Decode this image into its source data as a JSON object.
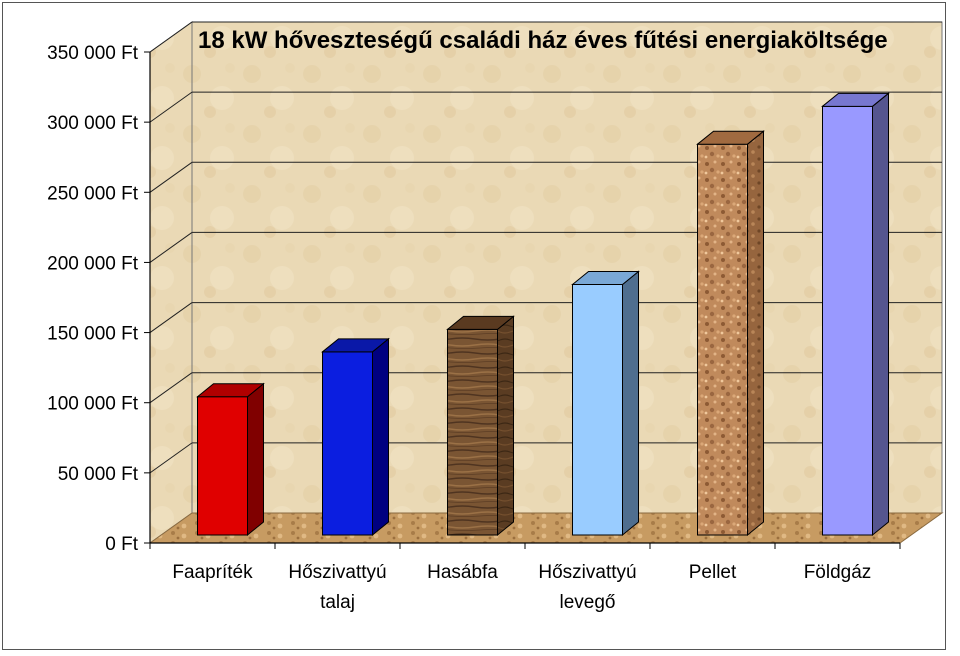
{
  "chart_data": {
    "type": "bar",
    "title": "18 kW hőveszteségű családi ház éves fűtési energiaköltsége",
    "categories": [
      "Faapríték",
      "Hőszivattyú talaj",
      "Hasábfa",
      "Hőszivattyú levegő",
      "Pellet",
      "Földgáz"
    ],
    "category_lines": [
      [
        "Faapríték"
      ],
      [
        "Hőszivattyú",
        "talaj"
      ],
      [
        "Hasábfa"
      ],
      [
        "Hőszivattyú",
        "levegő"
      ],
      [
        "Pellet"
      ],
      [
        "Földgáz"
      ]
    ],
    "values": [
      100000,
      132000,
      148000,
      180000,
      280000,
      307000
    ],
    "bar_colors": [
      "#e00000",
      "#0b1ee0",
      "#6b4a2c",
      "#99ccff",
      "#b07a50",
      "#9999ff"
    ],
    "y_ticks": [
      0,
      50000,
      100000,
      150000,
      200000,
      250000,
      300000,
      350000
    ],
    "y_tick_labels": [
      "0 Ft",
      "50 000 Ft",
      "100 000 Ft",
      "150 000 Ft",
      "200 000 Ft",
      "250 000 Ft",
      "300 000 Ft",
      "350 000 Ft"
    ],
    "ylim": [
      0,
      350000
    ],
    "grid": true,
    "xlabel": "",
    "ylabel": ""
  }
}
